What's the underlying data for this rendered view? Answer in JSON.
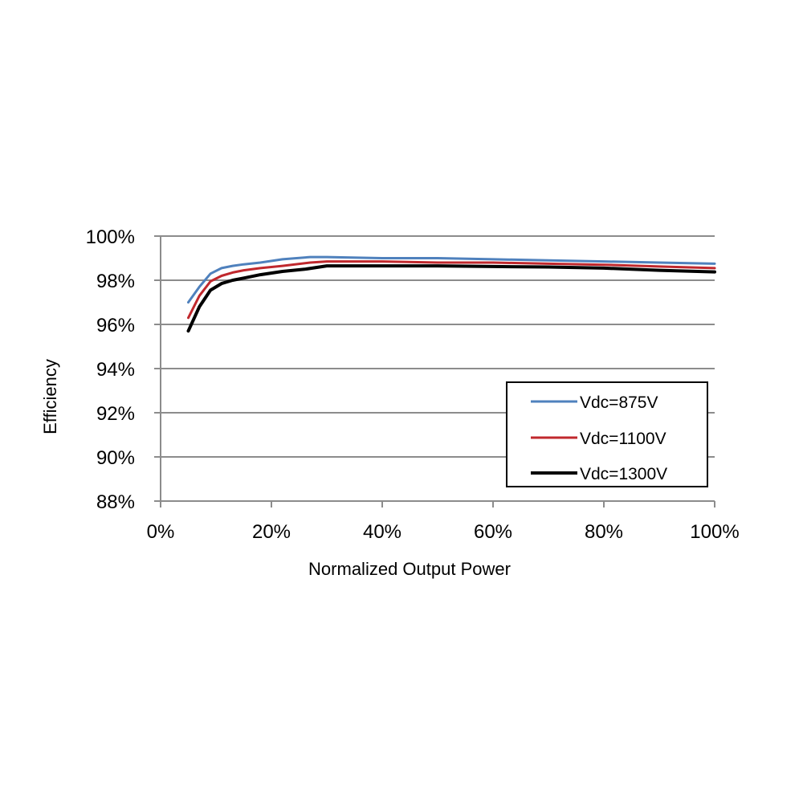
{
  "chart_data": {
    "type": "line",
    "xlabel": "Normalized Output Power",
    "ylabel": "Efficiency",
    "xlim": [
      0,
      100
    ],
    "ylim": [
      88,
      100
    ],
    "x_ticks": [
      "0%",
      "20%",
      "40%",
      "60%",
      "80%",
      "100%"
    ],
    "y_ticks": [
      "88%",
      "90%",
      "92%",
      "94%",
      "96%",
      "98%",
      "100%"
    ],
    "grid": "horizontal",
    "legend_position": "right",
    "series": [
      {
        "name": "Vdc=875V",
        "color": "#4F81BD",
        "x": [
          5,
          7,
          9,
          11,
          13,
          15,
          18,
          22,
          27,
          30,
          40,
          50,
          60,
          70,
          80,
          90,
          100
        ],
        "y": [
          97.0,
          97.7,
          98.3,
          98.55,
          98.65,
          98.72,
          98.8,
          98.95,
          99.05,
          99.05,
          99.0,
          99.0,
          98.95,
          98.9,
          98.85,
          98.8,
          98.75
        ]
      },
      {
        "name": "Vdc=1100V",
        "color": "#C0282D",
        "x": [
          5,
          7,
          9,
          11,
          13,
          15,
          18,
          22,
          27,
          30,
          40,
          50,
          60,
          70,
          80,
          90,
          100
        ],
        "y": [
          96.3,
          97.3,
          97.95,
          98.2,
          98.35,
          98.45,
          98.55,
          98.65,
          98.8,
          98.85,
          98.85,
          98.8,
          98.8,
          98.75,
          98.7,
          98.62,
          98.55
        ]
      },
      {
        "name": "Vdc=1300V",
        "color": "#000000",
        "x": [
          5,
          7,
          9,
          11,
          13,
          15,
          18,
          22,
          26,
          30,
          40,
          50,
          60,
          70,
          80,
          85,
          90,
          100
        ],
        "y": [
          95.7,
          96.8,
          97.55,
          97.85,
          98.0,
          98.1,
          98.25,
          98.4,
          98.5,
          98.65,
          98.65,
          98.65,
          98.62,
          98.6,
          98.55,
          98.5,
          98.45,
          98.38
        ]
      }
    ]
  }
}
